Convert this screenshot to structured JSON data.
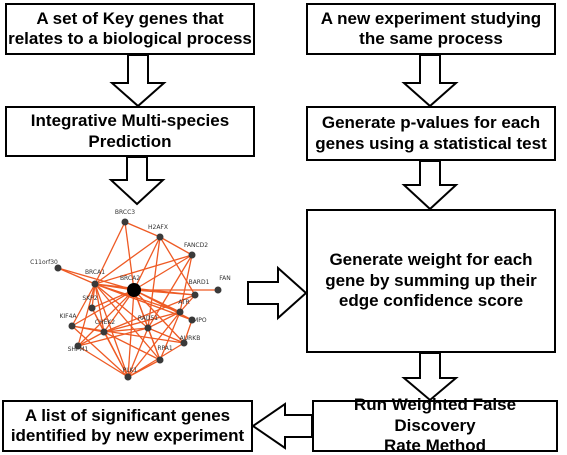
{
  "boxes": {
    "key_genes": "A set of Key genes that\nrelates to a biological process",
    "new_experiment": "A new experiment studying\nthe same process",
    "integrative": "Integrative Multi-species\nPrediction",
    "p_values": "Generate p-values for each\ngenes using a statistical test",
    "weight": "Generate weight for each\ngene by summing up their\nedge confidence score",
    "run_wfdr": "Run Weighted False Discovery\nRate Method",
    "significant": "A list of significant genes\nidentified by new experiment"
  },
  "network": {
    "center": "BRCA2",
    "nodes": [
      "BRCC3",
      "H2AFX",
      "FANCD2",
      "BARD1",
      "BRCA1",
      "C11orf30",
      "FAN",
      "ATR",
      "SKP2",
      "KIF4A",
      "CHEK2",
      "RAD51",
      "TMPO",
      "AURKB",
      "SHFM1",
      "RPA1",
      "PLK1"
    ],
    "colors": {
      "edge": "#ee5a24",
      "node": "#3a3a3a",
      "center": "#000000"
    }
  }
}
